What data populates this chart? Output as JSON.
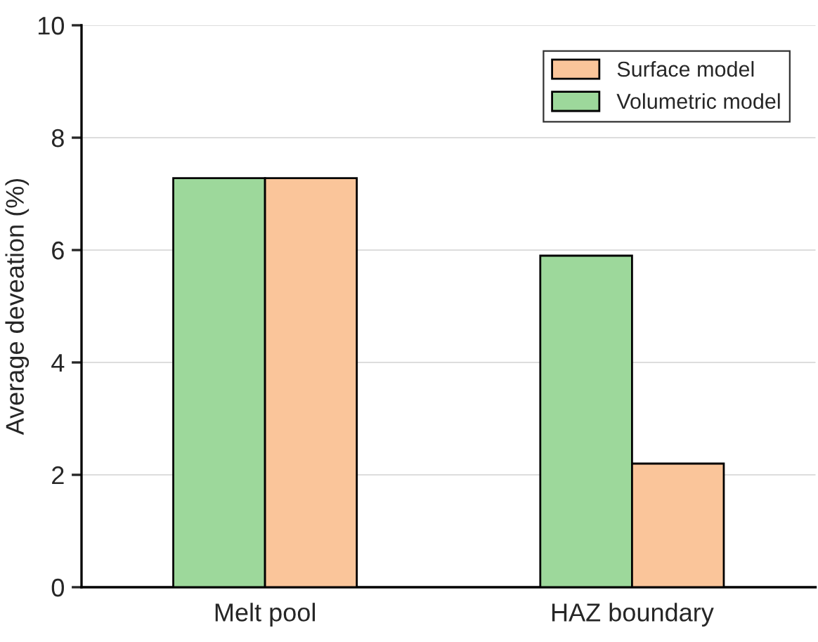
{
  "chart_data": {
    "type": "bar",
    "ylabel": "Average deveation (%)",
    "categories": [
      "Melt pool",
      "HAZ boundary"
    ],
    "series": [
      {
        "name": "Volumetric model",
        "color": "#9dd89b",
        "values": [
          7.28,
          5.9
        ]
      },
      {
        "name": "Surface model",
        "color": "#fac59a",
        "values": [
          7.28,
          2.2
        ]
      }
    ],
    "ylim": [
      0,
      10
    ],
    "yticks": [
      0,
      2,
      4,
      6,
      8,
      10
    ],
    "grid": "y",
    "legend": "top right"
  }
}
